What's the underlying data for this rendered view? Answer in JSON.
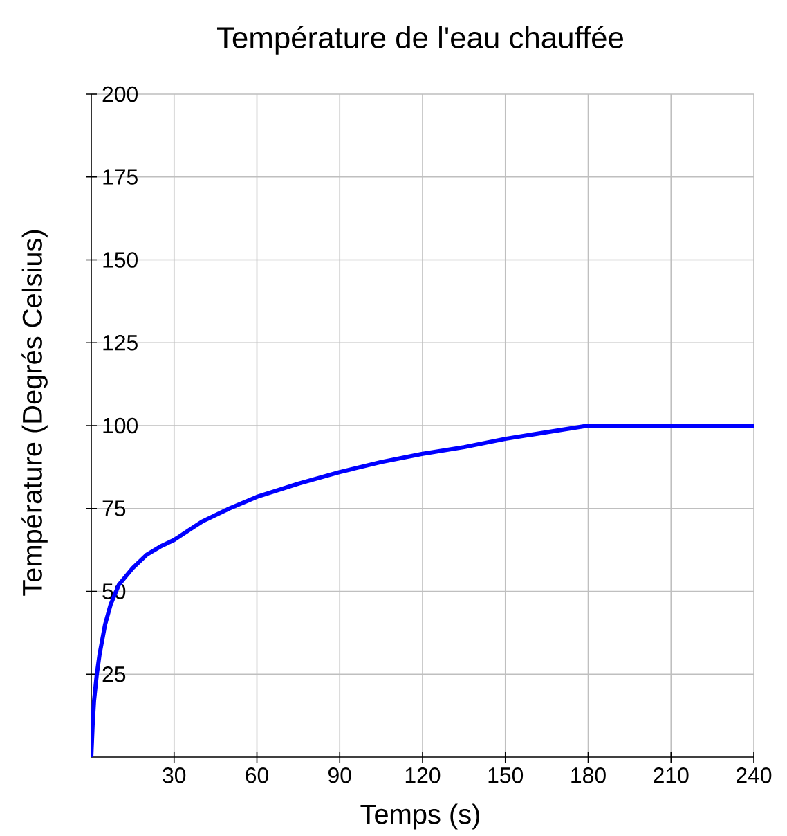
{
  "chart_data": {
    "type": "line",
    "title": "Température de l'eau chauffée",
    "xlabel": "Temps (s)",
    "ylabel": "Température (Degrés Celsius)",
    "x": [
      0,
      0.5,
      1,
      2,
      3,
      5,
      7,
      10,
      15,
      20,
      25,
      30,
      40,
      50,
      60,
      75,
      90,
      105,
      120,
      135,
      150,
      165,
      180,
      200,
      220,
      240
    ],
    "series": [
      {
        "color": "#0000ff",
        "values": [
          0,
          10,
          17,
          25,
          31,
          40,
          46,
          52,
          57,
          61,
          63.5,
          65.5,
          71,
          75,
          78.5,
          82.5,
          86,
          89,
          91.5,
          93.5,
          96,
          98,
          100,
          100,
          100,
          100
        ]
      }
    ],
    "xlim": [
      0,
      240
    ],
    "ylim": [
      0,
      200
    ],
    "xticks": [
      30,
      60,
      90,
      120,
      150,
      180,
      210,
      240
    ],
    "yticks": [
      25,
      50,
      75,
      100,
      125,
      150,
      175,
      200
    ],
    "grid": true,
    "marker": "none",
    "line_style": "solid"
  }
}
